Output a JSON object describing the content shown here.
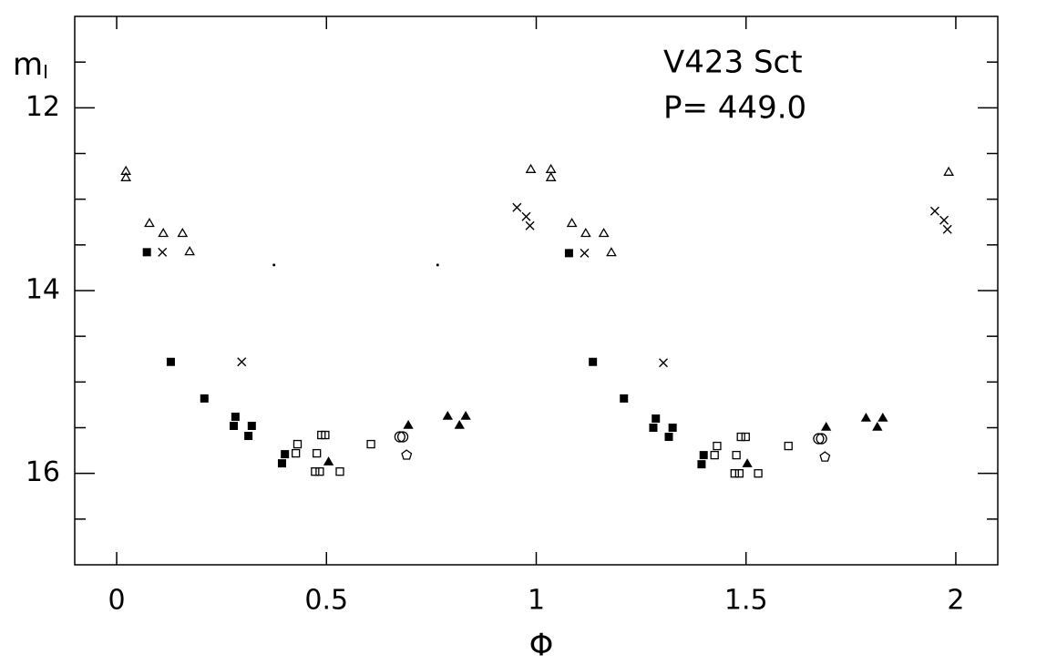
{
  "chart_data": {
    "type": "scatter",
    "x_label": "Φ",
    "y_label": "m",
    "y_label_sub": "I",
    "annotations": [
      "V423 Sct",
      "P= 449.0"
    ],
    "xlim": [
      -0.1,
      2.1
    ],
    "ylim": [
      17,
      11
    ],
    "xticks": [
      0,
      0.5,
      1,
      1.5,
      2
    ],
    "yticks": [
      12,
      14,
      16
    ],
    "yminorticks": [
      11.5,
      12.5,
      13,
      13.5,
      14.5,
      15,
      15.5,
      16.5
    ],
    "color": "#000000",
    "series": [
      {
        "marker": "open-triangle",
        "x": [
          0.022,
          0.022,
          0.078,
          0.111,
          0.157,
          0.174,
          0.987,
          1.035,
          1.035,
          1.085,
          1.118,
          1.161,
          1.179,
          1.983
        ],
        "values": [
          12.7,
          12.77,
          13.27,
          13.38,
          13.38,
          13.58,
          12.68,
          12.68,
          12.77,
          13.27,
          13.38,
          13.38,
          13.59,
          12.71
        ]
      },
      {
        "marker": "cross",
        "x": [
          0.109,
          0.298,
          0.954,
          0.976,
          0.985,
          1.115,
          1.303,
          1.95,
          1.972,
          1.98
        ],
        "values": [
          13.58,
          14.78,
          13.09,
          13.19,
          13.29,
          13.59,
          14.79,
          13.13,
          13.23,
          13.33
        ]
      },
      {
        "marker": "filled-square",
        "x": [
          0.072,
          0.129,
          0.209,
          0.283,
          0.279,
          0.322,
          0.314,
          0.401,
          0.394,
          1.078,
          1.135,
          1.209,
          1.285,
          1.279,
          1.325,
          1.316,
          1.399,
          1.394
        ],
        "values": [
          13.58,
          14.78,
          15.18,
          15.38,
          15.48,
          15.48,
          15.59,
          15.79,
          15.89,
          13.59,
          14.78,
          15.18,
          15.4,
          15.5,
          15.5,
          15.6,
          15.8,
          15.9
        ]
      },
      {
        "marker": "open-square",
        "x": [
          0.431,
          0.427,
          0.488,
          0.497,
          0.477,
          0.473,
          0.484,
          0.532,
          0.606,
          1.431,
          1.425,
          1.488,
          1.499,
          1.477,
          1.473,
          1.484,
          1.529,
          1.601
        ],
        "values": [
          15.68,
          15.78,
          15.58,
          15.58,
          15.78,
          15.98,
          15.98,
          15.98,
          15.68,
          15.7,
          15.8,
          15.6,
          15.6,
          15.8,
          16,
          16,
          16,
          15.7
        ]
      },
      {
        "marker": "filled-triangle",
        "x": [
          0.505,
          0.695,
          0.789,
          0.817,
          0.832,
          1.503,
          1.691,
          1.786,
          1.813,
          1.826
        ],
        "values": [
          15.88,
          15.48,
          15.38,
          15.48,
          15.38,
          15.9,
          15.5,
          15.4,
          15.5,
          15.4
        ]
      },
      {
        "marker": "open-circle",
        "x": [
          0.675,
          0.682,
          1.673,
          1.68
        ],
        "values": [
          15.6,
          15.6,
          15.62,
          15.62
        ]
      },
      {
        "marker": "open-pentagon",
        "x": [
          0.691,
          1.688
        ],
        "values": [
          15.8,
          15.82
        ]
      },
      {
        "marker": "dot",
        "x": [
          0.375,
          0.765
        ],
        "values": [
          13.72,
          13.72
        ]
      }
    ]
  }
}
